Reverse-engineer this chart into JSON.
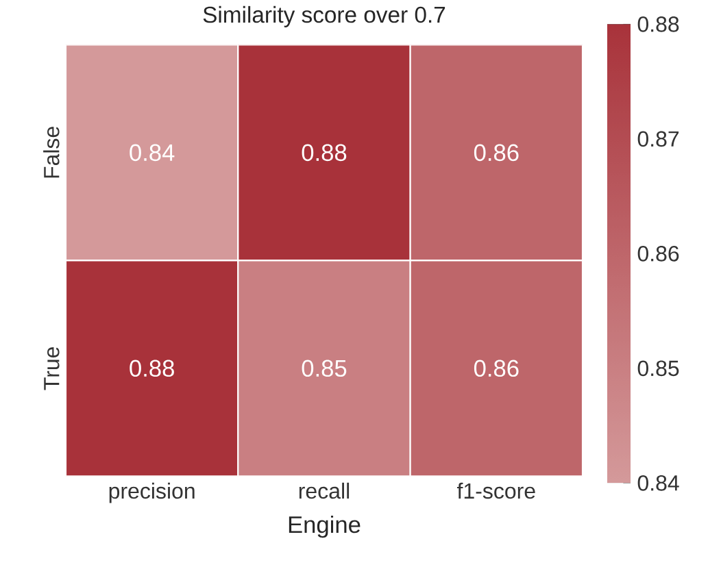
{
  "chart_data": {
    "type": "heatmap",
    "title": "Similarity score over 0.7",
    "xlabel": "Engine",
    "categories": [
      "precision",
      "recall",
      "f1-score"
    ],
    "y_categories": [
      "False",
      "True"
    ],
    "cells": [
      [
        0.84,
        0.88,
        0.86
      ],
      [
        0.88,
        0.85,
        0.86
      ]
    ],
    "clim": [
      0.84,
      0.88
    ],
    "cticks": [
      0.84,
      0.85,
      0.86,
      0.87,
      0.88
    ],
    "data_labels": true
  }
}
